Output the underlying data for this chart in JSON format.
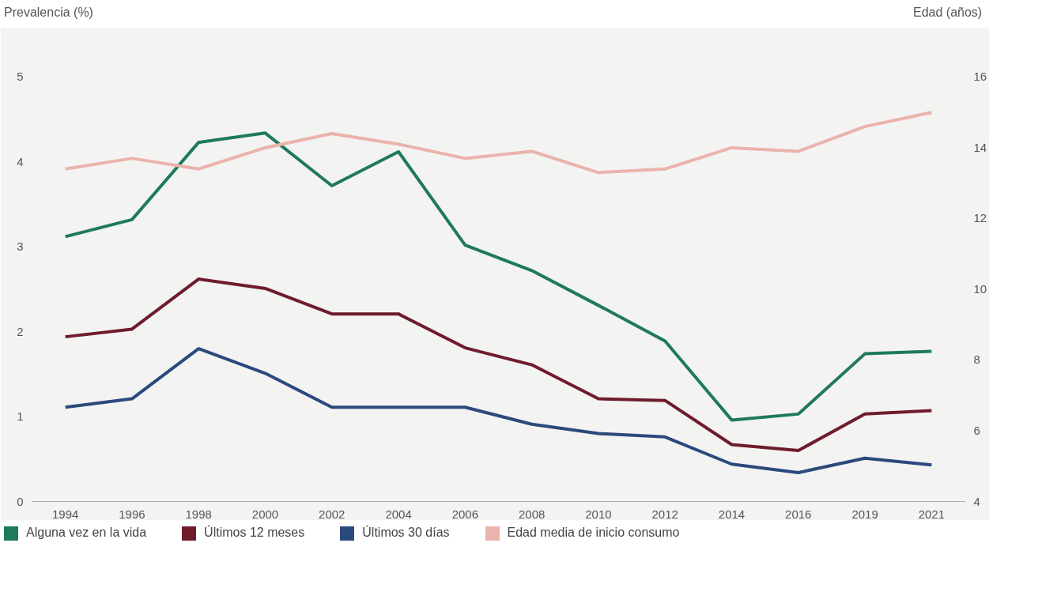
{
  "chart_data": {
    "type": "line",
    "ylabel": "Prevalencia (%)",
    "y2label": "Edad (años)",
    "categories": [
      "1994",
      "1996",
      "1998",
      "2000",
      "2002",
      "2004",
      "2006",
      "2008",
      "2010",
      "2012",
      "2014",
      "2016",
      "2019",
      "2021"
    ],
    "ylim": [
      0,
      5.4
    ],
    "yticks": [
      0,
      1,
      2,
      3,
      4,
      5
    ],
    "y2lim": [
      4,
      16.96
    ],
    "y2ticks": [
      4,
      6,
      8,
      10,
      12,
      14,
      16
    ],
    "grid": false,
    "legend": "bottom",
    "marker": "none",
    "line_style": "solid",
    "series": [
      {
        "name": "Alguna vez en la vida",
        "color": "#1e7a5a",
        "values": [
          3.12,
          3.32,
          4.23,
          4.34,
          3.72,
          4.12,
          3.02,
          2.72,
          2.31,
          1.89,
          0.96,
          1.03,
          1.74,
          1.77
        ]
      },
      {
        "name": "Últimos 12 meses",
        "color": "#6e1c2c",
        "values": [
          1.94,
          2.03,
          2.62,
          2.51,
          2.21,
          2.21,
          1.81,
          1.61,
          1.21,
          1.19,
          0.67,
          0.6,
          1.03,
          1.07
        ]
      },
      {
        "name": "Últimos 30 días",
        "color": "#2b4a7c",
        "values": [
          1.11,
          1.21,
          1.8,
          1.51,
          1.11,
          1.11,
          1.11,
          0.91,
          0.8,
          0.76,
          0.44,
          0.34,
          0.51,
          0.43
        ]
      },
      {
        "name": "Edad media de inicio consumo",
        "color": "#eab3ab",
        "axis": "y2",
        "values": [
          13.4,
          13.7,
          13.4,
          14.0,
          14.4,
          14.1,
          13.7,
          13.9,
          13.3,
          13.4,
          14.0,
          13.9,
          14.6,
          15.0
        ]
      }
    ]
  }
}
